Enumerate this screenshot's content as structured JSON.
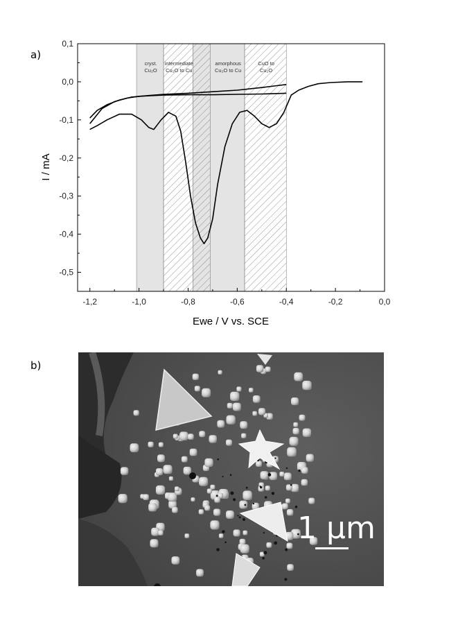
{
  "panels": {
    "a_label": "a)",
    "b_label": "b)"
  },
  "chart_data": {
    "type": "line",
    "xlabel": "Ewe / V vs. SCE",
    "ylabel": "I / mA",
    "xlim": [
      -1.25,
      0.0
    ],
    "ylim": [
      -0.55,
      0.1
    ],
    "xticks": [
      -1.2,
      -1.0,
      -0.8,
      -0.6,
      -0.4,
      -0.2,
      0.0
    ],
    "xtick_labels": [
      "-1,2",
      "-1,0",
      "-0,8",
      "-0,6",
      "-0,4",
      "-0,2",
      "0,0"
    ],
    "yticks": [
      0.1,
      0.0,
      -0.1,
      -0.2,
      -0.3,
      -0.4,
      -0.5
    ],
    "ytick_labels": [
      "0,1",
      "0,0",
      "-0,1",
      "-0,2",
      "-0,3",
      "-0,4",
      "-0,5"
    ],
    "grid": false,
    "regions": [
      {
        "x": [
          -1.01,
          -0.9
        ],
        "label_lines": [
          "cryst.",
          "Cu₂O"
        ],
        "style": "gray"
      },
      {
        "x": [
          -0.9,
          -0.78
        ],
        "label_lines": [
          "intermediate",
          "Cu₂O to Cu"
        ],
        "style": "hatch"
      },
      {
        "x": [
          -0.78,
          -0.71
        ],
        "label_lines": [],
        "style": "gray-hatch"
      },
      {
        "x": [
          -0.71,
          -0.57
        ],
        "label_lines": [
          "amorphous",
          "Cu₂O to Cu"
        ],
        "style": "gray"
      },
      {
        "x": [
          -0.57,
          -0.4
        ],
        "label_lines": [
          "CuO to",
          "Cu₂O"
        ],
        "style": "hatch"
      }
    ],
    "series": [
      {
        "values": [
          [
            -0.09,
            0.0
          ],
          [
            -0.15,
            0.0
          ],
          [
            -0.22,
            -0.002
          ],
          [
            -0.27,
            -0.005
          ],
          [
            -0.31,
            -0.012
          ],
          [
            -0.35,
            -0.022
          ],
          [
            -0.38,
            -0.035
          ],
          [
            -0.41,
            -0.08
          ],
          [
            -0.44,
            -0.11
          ],
          [
            -0.47,
            -0.12
          ],
          [
            -0.5,
            -0.11
          ],
          [
            -0.53,
            -0.09
          ],
          [
            -0.56,
            -0.075
          ],
          [
            -0.59,
            -0.08
          ],
          [
            -0.62,
            -0.11
          ],
          [
            -0.65,
            -0.17
          ],
          [
            -0.68,
            -0.27
          ],
          [
            -0.7,
            -0.36
          ],
          [
            -0.72,
            -0.41
          ],
          [
            -0.735,
            -0.425
          ],
          [
            -0.75,
            -0.41
          ],
          [
            -0.77,
            -0.37
          ],
          [
            -0.79,
            -0.3
          ],
          [
            -0.81,
            -0.21
          ],
          [
            -0.83,
            -0.13
          ],
          [
            -0.85,
            -0.09
          ],
          [
            -0.88,
            -0.08
          ],
          [
            -0.91,
            -0.1
          ],
          [
            -0.94,
            -0.125
          ],
          [
            -0.96,
            -0.12
          ],
          [
            -0.99,
            -0.1
          ],
          [
            -1.03,
            -0.085
          ],
          [
            -1.08,
            -0.085
          ],
          [
            -1.13,
            -0.1
          ],
          [
            -1.17,
            -0.115
          ],
          [
            -1.2,
            -0.125
          ]
        ]
      },
      {
        "values": [
          [
            -1.2,
            -0.095
          ],
          [
            -1.17,
            -0.075
          ],
          [
            -1.13,
            -0.06
          ],
          [
            -1.08,
            -0.048
          ],
          [
            -1.03,
            -0.04
          ],
          [
            -0.96,
            -0.036
          ],
          [
            -0.9,
            -0.033
          ],
          [
            -0.8,
            -0.03
          ],
          [
            -0.7,
            -0.026
          ],
          [
            -0.6,
            -0.022
          ],
          [
            -0.5,
            -0.015
          ],
          [
            -0.45,
            -0.011
          ],
          [
            -0.4,
            -0.007
          ]
        ]
      },
      {
        "values": [
          [
            -1.2,
            -0.11
          ],
          [
            -1.15,
            -0.07
          ],
          [
            -1.1,
            -0.052
          ],
          [
            -1.05,
            -0.043
          ],
          [
            -1.0,
            -0.038
          ],
          [
            -0.9,
            -0.035
          ],
          [
            -0.8,
            -0.034
          ],
          [
            -0.7,
            -0.034
          ],
          [
            -0.6,
            -0.033
          ],
          [
            -0.5,
            -0.032
          ],
          [
            -0.4,
            -0.03
          ]
        ]
      }
    ]
  },
  "sem": {
    "scalebar_label": "1 μm"
  }
}
